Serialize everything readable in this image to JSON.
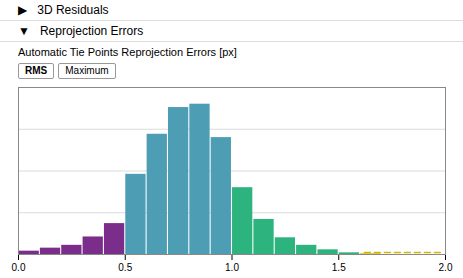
{
  "chart_data": {
    "type": "bar",
    "title": "Automatic Tie Points Reprojection Errors [px]",
    "annotations": [
      "▶   3D Residuals",
      "▼   Reprojection Errors",
      "RMS",
      "Maximum"
    ],
    "x": [
      0.05,
      0.15,
      0.25,
      0.35,
      0.45,
      0.55,
      0.65,
      0.75,
      0.85,
      0.95,
      1.05,
      1.15,
      1.25,
      1.35,
      1.45,
      1.55,
      1.65
    ],
    "values": [
      0.02,
      0.038,
      0.055,
      0.105,
      0.185,
      0.48,
      0.72,
      0.88,
      0.9,
      0.7,
      0.4,
      0.21,
      0.1,
      0.055,
      0.028,
      0.01,
      0.004
    ],
    "colors": [
      "#7b2d8b",
      "#7b2d8b",
      "#7b2d8b",
      "#7b2d8b",
      "#7b2d8b",
      "#4d9db5",
      "#4d9db5",
      "#4d9db5",
      "#4d9db5",
      "#4d9db5",
      "#2db37d",
      "#2db37d",
      "#2db37d",
      "#2db37d",
      "#2db37d",
      "#2db37d",
      "#c8b400"
    ],
    "max_marker": {
      "x": [
        1.62,
        1.98
      ],
      "y": 0.012,
      "color": "#d4b800",
      "line_style": "dashed"
    },
    "xlim": [
      0,
      2
    ],
    "xticks": [
      0,
      0.5,
      1.0,
      1.5,
      2.0
    ],
    "ylim": [
      0,
      1
    ],
    "yticks": [
      0.25,
      0.5,
      0.75
    ],
    "grid": true,
    "tick_labels": "x"
  }
}
